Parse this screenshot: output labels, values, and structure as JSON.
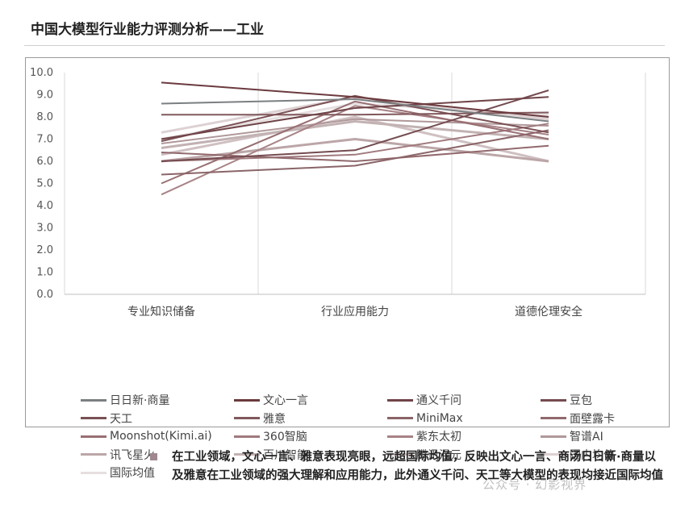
{
  "header": {
    "title": "中国大模型行业能力评测分析——工业"
  },
  "chart_data": {
    "type": "line",
    "categories": [
      "专业知识储备",
      "行业应用能力",
      "道德伦理安全"
    ],
    "ylim": [
      0,
      10
    ],
    "yticks": [
      "0.0",
      "1.0",
      "2.0",
      "3.0",
      "4.0",
      "5.0",
      "6.0",
      "7.0",
      "8.0",
      "9.0",
      "10.0"
    ],
    "grid": true,
    "legend_position": "bottom",
    "series": [
      {
        "name": "日日新·商量",
        "values": [
          8.6,
          8.8,
          7.8
        ],
        "color": "#7b7f81"
      },
      {
        "name": "文心一言",
        "values": [
          9.55,
          8.9,
          8.0
        ],
        "color": "#6b3a3e"
      },
      {
        "name": "通义千问",
        "values": [
          7.0,
          8.4,
          8.9
        ],
        "color": "#6f4448"
      },
      {
        "name": "豆包",
        "values": [
          6.0,
          6.5,
          9.2
        ],
        "color": "#744b4f"
      },
      {
        "name": "天工",
        "values": [
          6.9,
          8.95,
          7.3
        ],
        "color": "#7a5054"
      },
      {
        "name": "雅意",
        "values": [
          8.1,
          8.1,
          8.2
        ],
        "color": "#80585b"
      },
      {
        "name": "MiniMax",
        "values": [
          5.4,
          5.8,
          7.4
        ],
        "color": "#8a6468"
      },
      {
        "name": "面壁露卡",
        "values": [
          6.4,
          6.0,
          6.7
        ],
        "color": "#91696d"
      },
      {
        "name": "Moonshot(Kimi.ai)",
        "values": [
          5.0,
          8.7,
          7.0
        ],
        "color": "#986f73"
      },
      {
        "name": "360智脑",
        "values": [
          6.0,
          6.3,
          7.7
        ],
        "color": "#a07a7e"
      },
      {
        "name": "紫东太初",
        "values": [
          4.5,
          8.5,
          7.2
        ],
        "color": "#a88387"
      },
      {
        "name": "智谱AI",
        "values": [
          6.8,
          7.9,
          7.6
        ],
        "color": "#b0989a"
      },
      {
        "name": "讯飞星火",
        "values": [
          6.0,
          7.0,
          6.0
        ],
        "color": "#bca6a8"
      },
      {
        "name": "百川智能",
        "values": [
          6.6,
          7.8,
          7.0
        ],
        "color": "#c3b2b3"
      },
      {
        "name": "腾讯混元",
        "values": [
          6.3,
          8.0,
          6.0
        ],
        "color": "#cfc0c2"
      },
      {
        "name": "国内均值",
        "values": [
          7.3,
          8.9,
          7.9
        ],
        "color": "#ddd1d3"
      },
      {
        "name": "国际均值",
        "values": [
          7.0,
          8.6,
          8.1
        ],
        "color": "#e6dfe0"
      }
    ]
  },
  "bullet": {
    "text": "在工业领域，文心一言、雅意表现亮眼，远超国际均值，反映出文心一言、商汤日日新·商量以及雅意在工业领域的强大理解和应用能力，此外通义千问、天工等大模型的表现均接近国际均值"
  },
  "watermark": {
    "text": "公众号 · 幻影视界"
  }
}
